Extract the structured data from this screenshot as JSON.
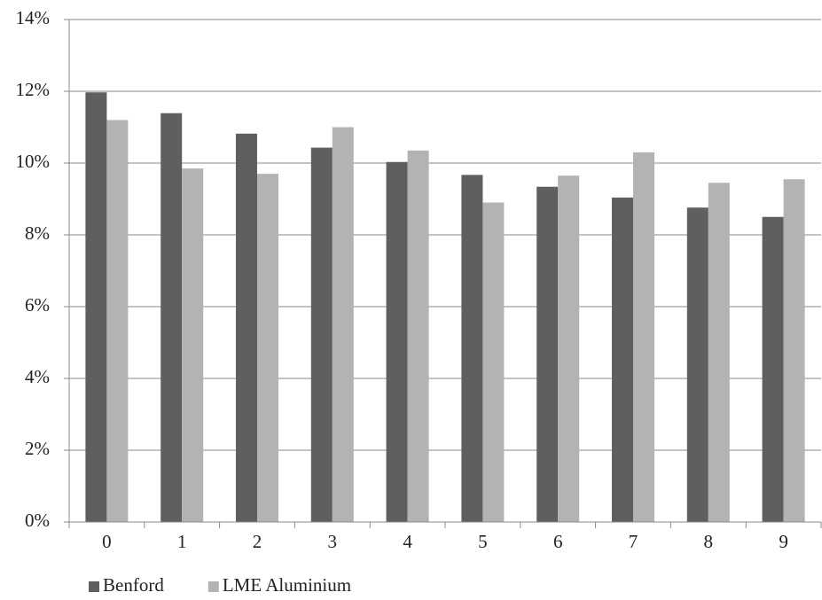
{
  "chart_data": {
    "type": "bar",
    "categories": [
      "0",
      "1",
      "2",
      "3",
      "4",
      "5",
      "6",
      "7",
      "8",
      "9"
    ],
    "series": [
      {
        "name": "Benford",
        "color": "#5f5f5f",
        "values": [
          11.97,
          11.39,
          10.82,
          10.43,
          10.03,
          9.67,
          9.34,
          9.04,
          8.76,
          8.5
        ]
      },
      {
        "name": "LME Aluminium",
        "color": "#b3b3b3",
        "values": [
          11.2,
          9.85,
          9.7,
          11.0,
          10.35,
          8.9,
          9.65,
          10.3,
          9.45,
          9.55
        ]
      }
    ],
    "ylim": [
      0,
      14
    ],
    "yticks": [
      {
        "value": 0,
        "label": "0%"
      },
      {
        "value": 2,
        "label": "2%"
      },
      {
        "value": 4,
        "label": "4%"
      },
      {
        "value": 6,
        "label": "6%"
      },
      {
        "value": 8,
        "label": "8%"
      },
      {
        "value": 10,
        "label": "10%"
      },
      {
        "value": 12,
        "label": "12%"
      },
      {
        "value": 14,
        "label": "14%"
      }
    ],
    "grid": true,
    "legend": "bottom"
  }
}
